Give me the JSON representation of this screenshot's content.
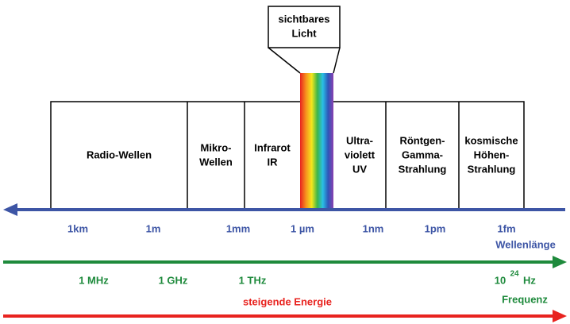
{
  "visible_light": {
    "lines": [
      "sichtbares",
      "Licht"
    ]
  },
  "regions": [
    {
      "lines": [
        "Radio-Wellen"
      ]
    },
    {
      "lines": [
        "Mikro-",
        "Wellen"
      ]
    },
    {
      "lines": [
        "Infrarot",
        "IR"
      ]
    },
    {
      "lines": [
        "Ultra-",
        "violett",
        "UV"
      ]
    },
    {
      "lines": [
        "Röntgen-",
        "Gamma-",
        "Strahlung"
      ]
    },
    {
      "lines": [
        "kosmische",
        "Höhen-",
        "Strahlung"
      ]
    }
  ],
  "wavelength": {
    "title": "Wellenlänge",
    "labels": [
      "1km",
      "1m",
      "1mm",
      "1 µm",
      "1nm",
      "1pm",
      "1fm"
    ]
  },
  "frequency": {
    "title": "Frequenz",
    "labels": [
      "1 MHz",
      "1 GHz",
      "1 THz"
    ],
    "last": {
      "base": "10",
      "exponent": "24",
      "unit": "Hz"
    }
  },
  "energy": {
    "title": "steigende Energie"
  }
}
